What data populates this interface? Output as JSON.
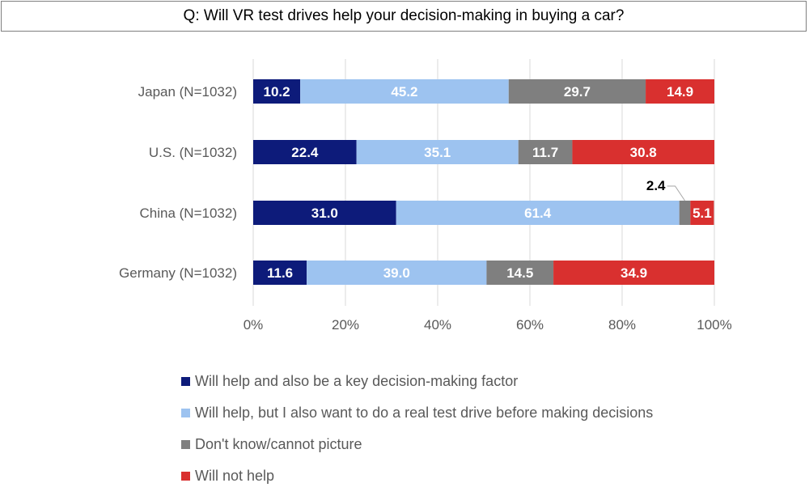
{
  "chart_data": {
    "type": "bar",
    "orientation": "horizontal",
    "stacked": true,
    "title": "Q: Will VR test drives help your decision-making in buying a car?",
    "categories": [
      "Japan (N=1032)",
      "U.S. (N=1032)",
      "China (N=1032)",
      "Germany (N=1032)"
    ],
    "series": [
      {
        "name": "Will help and also be a key decision-making factor",
        "color": "#0d1b7a",
        "values": [
          10.2,
          22.4,
          31.0,
          11.6
        ],
        "labels": [
          "10.2",
          "22.4",
          "31.0",
          "11.6"
        ]
      },
      {
        "name": "Will help, but I also want to do a real test drive before making decisions",
        "color": "#9dc3f0",
        "values": [
          45.2,
          35.1,
          61.4,
          39.0
        ],
        "labels": [
          "45.2",
          "35.1",
          "61.4",
          "39.0"
        ]
      },
      {
        "name": "Don't know/cannot picture",
        "color": "#7f7f7f",
        "values": [
          29.7,
          11.7,
          2.4,
          14.5
        ],
        "labels": [
          "29.7",
          "11.7",
          "2.4",
          "14.5"
        ]
      },
      {
        "name": "Will not help",
        "color": "#d9302f",
        "values": [
          14.9,
          30.8,
          5.1,
          34.9
        ],
        "labels": [
          "14.9",
          "30.8",
          "5.1",
          "34.9"
        ]
      }
    ],
    "xlim": [
      0,
      100
    ],
    "x_ticks": [
      "0%",
      "20%",
      "40%",
      "60%",
      "80%",
      "100%"
    ],
    "grid": true,
    "legend_position": "bottom"
  }
}
